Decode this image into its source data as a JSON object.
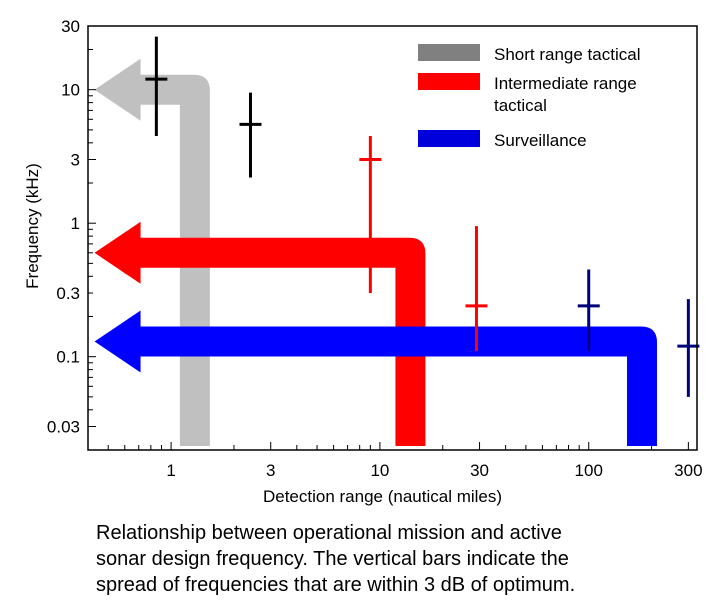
{
  "chart_data": {
    "type": "scatter",
    "xscale": "log",
    "yscale": "log",
    "xlim": [
      0.4,
      330
    ],
    "ylim": [
      0.02,
      30
    ],
    "xlabel": "Detection range (nautical miles)",
    "ylabel": "Frequency (kHz)",
    "xticks": [
      1,
      3,
      10,
      30,
      100,
      300
    ],
    "xtick_labels": [
      "1",
      "3",
      "10",
      "30",
      "100",
      "300"
    ],
    "yticks": [
      0.03,
      0.1,
      0.3,
      1,
      3,
      10,
      30
    ],
    "ytick_labels": [
      "0.03",
      "0.1",
      "0.3",
      "1",
      "3",
      "10",
      "30"
    ],
    "grid": false,
    "legend": "top-right",
    "series": [
      {
        "name": "Short range tactical",
        "legend_label": "Short range tactical",
        "legend_color": "#808080",
        "arrow_color": "#c0c0c0",
        "mark_color": "#000000",
        "arrow": {
          "x_tip": 0.43,
          "x_corner": 1.3,
          "y": 10,
          "y_bottom": 0.02
        },
        "points": [
          {
            "x": 0.85,
            "y": 12,
            "y_low": 4.5,
            "y_high": 25
          },
          {
            "x": 2.4,
            "y": 5.5,
            "y_low": 2.2,
            "y_high": 9.5
          }
        ]
      },
      {
        "name": "Intermediate range tactical",
        "legend_label": "Intermediate range tactical",
        "legend_color": "#ff0000",
        "arrow_color": "#ff0000",
        "mark_color": "#ff0000",
        "arrow": {
          "x_tip": 0.43,
          "x_corner": 14,
          "y": 0.6,
          "y_bottom": 0.02
        },
        "points": [
          {
            "x": 9,
            "y": 3,
            "y_low": 0.3,
            "y_high": 4.5
          },
          {
            "x": 29,
            "y": 0.24,
            "y_low": 0.11,
            "y_high": 0.95
          }
        ]
      },
      {
        "name": "Surveillance",
        "legend_label": "Surveillance",
        "legend_color": "#0000dd",
        "arrow_color": "#0000ff",
        "mark_color": "#00007a",
        "arrow": {
          "x_tip": 0.43,
          "x_corner": 180,
          "y": 0.13,
          "y_bottom": 0.02
        },
        "points": [
          {
            "x": 100,
            "y": 0.24,
            "y_low": 0.11,
            "y_high": 0.45
          },
          {
            "x": 300,
            "y": 0.12,
            "y_low": 0.05,
            "y_high": 0.27
          }
        ]
      }
    ]
  },
  "caption": [
    "Relationship between operational mission and active",
    "sonar  design  frequency. The vertical bars indicate the",
    "spread of frequencies that are within  3 dB of optimum."
  ]
}
